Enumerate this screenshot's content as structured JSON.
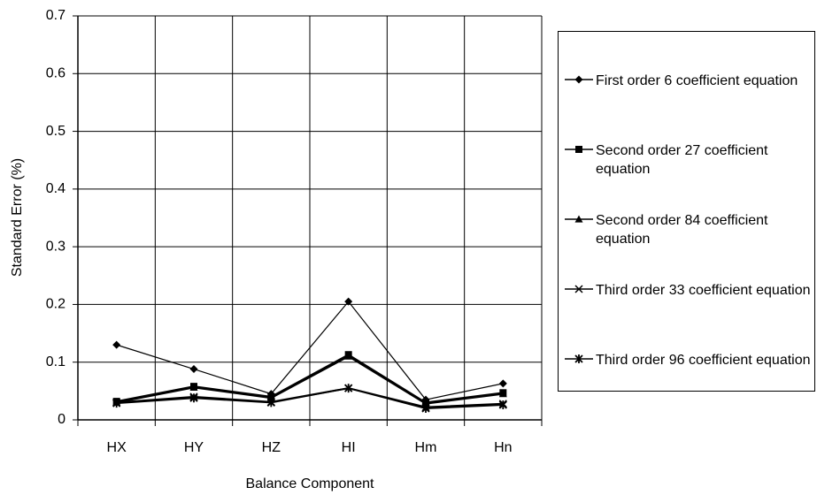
{
  "chart_data": {
    "type": "line",
    "xlabel": "Balance Component",
    "ylabel": "Standard Error (%)",
    "categories": [
      "HX",
      "HY",
      "HZ",
      "HI",
      "Hm",
      "Hn"
    ],
    "ylim": [
      0,
      0.7
    ],
    "yticks": [
      0,
      0.1,
      0.2,
      0.3,
      0.4,
      0.5,
      0.6,
      0.7
    ],
    "grid": true,
    "legend": "right",
    "series": [
      {
        "name": "First order 6 coefficient equation",
        "color": "#000000",
        "marker": "diamond",
        "values": [
          0.13,
          0.088,
          0.045,
          0.205,
          0.035,
          0.063
        ]
      },
      {
        "name": "Second order 27 coefficient equation",
        "color": "#000000",
        "marker": "square",
        "values": [
          0.032,
          0.058,
          0.04,
          0.113,
          0.03,
          0.047
        ]
      },
      {
        "name": "Second order 84 coefficient equation",
        "color": "#000000",
        "marker": "triangle",
        "values": [
          0.03,
          0.056,
          0.038,
          0.11,
          0.028,
          0.045
        ]
      },
      {
        "name": "Third order 33 coefficient equation",
        "color": "#000000",
        "marker": "x",
        "values": [
          0.03,
          0.04,
          0.031,
          0.055,
          0.022,
          0.028
        ]
      },
      {
        "name": "Third order 96 coefficient equation",
        "color": "#000000",
        "marker": "star",
        "values": [
          0.029,
          0.038,
          0.03,
          0.055,
          0.02,
          0.026
        ]
      }
    ]
  }
}
